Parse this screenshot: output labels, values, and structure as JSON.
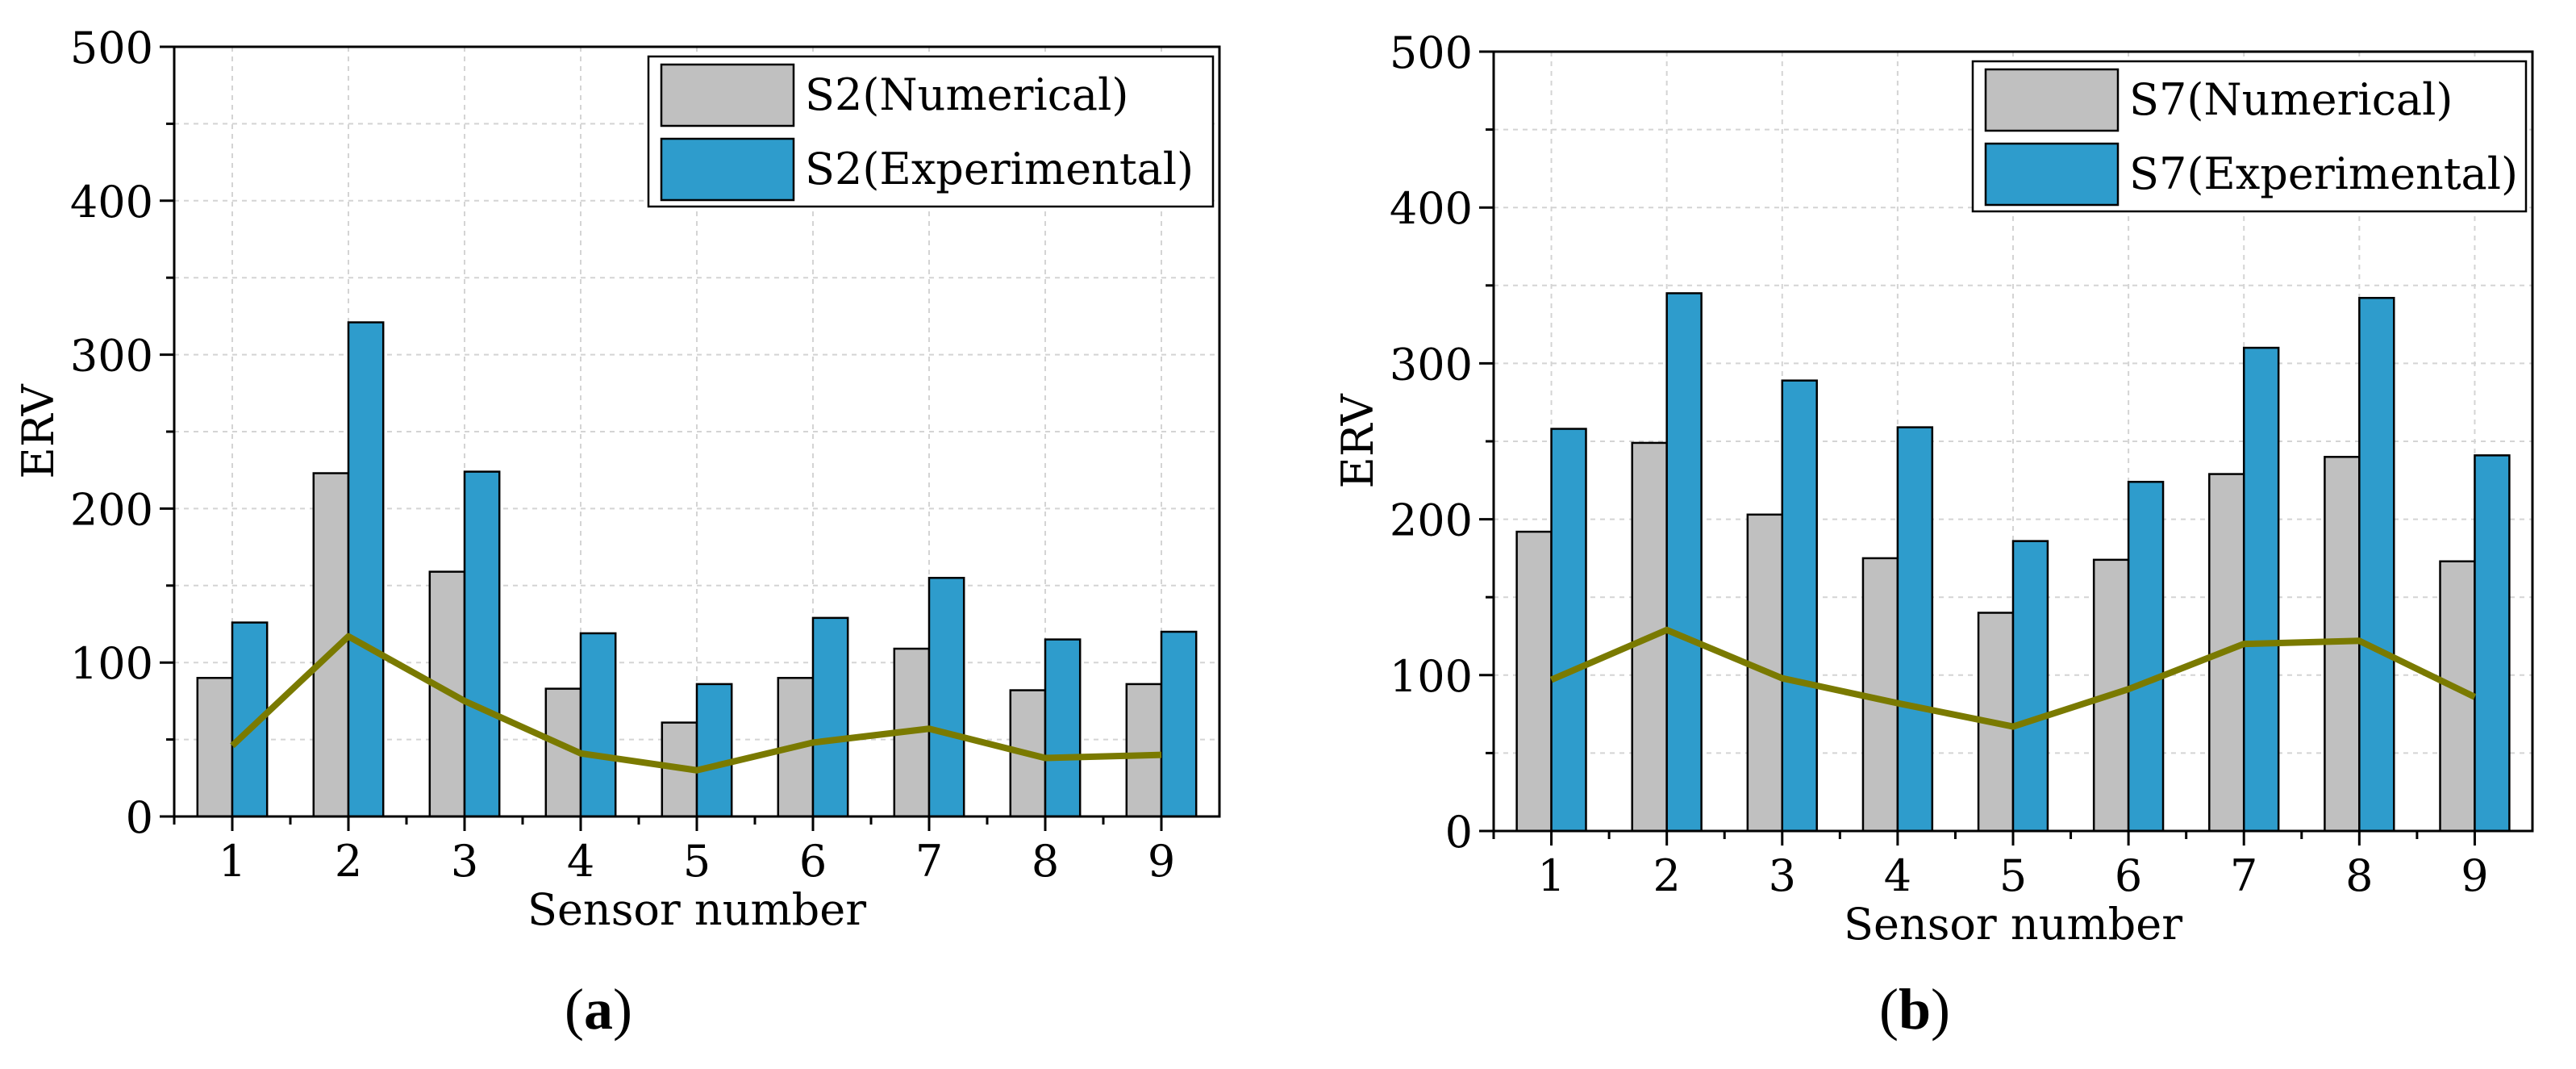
{
  "chart_data": [
    {
      "type": "bar",
      "panel_label": "a",
      "title": "",
      "xlabel": "Sensor number",
      "ylabel": "ERV",
      "ylim": [
        0,
        500
      ],
      "yticks": [
        0,
        100,
        200,
        300,
        400,
        500
      ],
      "grid": true,
      "legend_position": "top-right",
      "categories": [
        "1",
        "2",
        "3",
        "4",
        "5",
        "6",
        "7",
        "8",
        "9"
      ],
      "series": [
        {
          "name": "S2(Numerical)",
          "color": "#c0c0c0",
          "values": [
            90,
            223,
            159,
            83,
            61,
            90,
            109,
            82,
            86
          ]
        },
        {
          "name": "S2(Experimental)",
          "color": "#2e9ccc",
          "values": [
            126,
            321,
            224,
            119,
            86,
            129,
            155,
            115,
            120
          ]
        }
      ],
      "line": {
        "name": "",
        "color": "#7a7a00",
        "values": [
          46,
          117,
          75,
          41,
          30,
          48,
          57,
          38,
          40
        ]
      }
    },
    {
      "type": "bar",
      "panel_label": "b",
      "title": "",
      "xlabel": "Sensor number",
      "ylabel": "ERV",
      "ylim": [
        0,
        500
      ],
      "yticks": [
        0,
        100,
        200,
        300,
        400,
        500
      ],
      "grid": true,
      "legend_position": "top-right",
      "categories": [
        "1",
        "2",
        "3",
        "4",
        "5",
        "6",
        "7",
        "8",
        "9"
      ],
      "series": [
        {
          "name": "S7(Numerical)",
          "color": "#c0c0c0",
          "values": [
            192,
            249,
            203,
            175,
            140,
            174,
            229,
            240,
            173
          ]
        },
        {
          "name": "S7(Experimental)",
          "color": "#2e9ccc",
          "values": [
            258,
            345,
            289,
            259,
            186,
            224,
            310,
            342,
            241
          ]
        }
      ],
      "line": {
        "name": "",
        "color": "#7a7a00",
        "values": [
          97,
          129,
          98,
          82,
          67,
          91,
          120,
          122,
          86
        ]
      }
    }
  ]
}
